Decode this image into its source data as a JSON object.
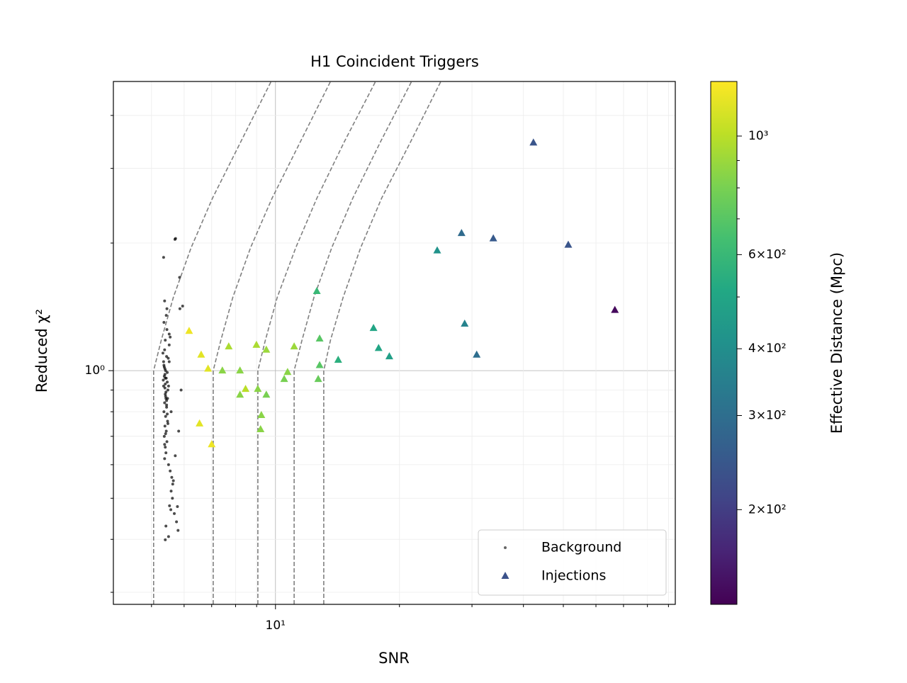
{
  "chart_data": {
    "type": "scatter",
    "title": "H1 Coincident Triggers",
    "xlabel": "SNR",
    "ylabel": "Reduced χ²",
    "xscale": "log",
    "yscale": "log",
    "xlim": [
      4.04,
      93.5
    ],
    "ylim": [
      0.281,
      4.81
    ],
    "xticks": [
      {
        "value": 10,
        "label": "10¹"
      }
    ],
    "yticks": [
      {
        "value": 1,
        "label": "10⁰"
      }
    ],
    "xminorticks": [
      5,
      6,
      7,
      8,
      9,
      20,
      30,
      40,
      50,
      60,
      70,
      80,
      90
    ],
    "yminorticks": [
      0.3,
      0.4,
      0.5,
      0.6,
      0.7,
      0.8,
      0.9,
      2,
      3,
      4
    ],
    "grid": true,
    "legend": "lower right",
    "series": [
      {
        "name": "Background",
        "color": "#000000",
        "marker": "dot",
        "x": [
          5.35,
          5.7,
          5.72,
          5.85,
          5.38,
          5.95,
          5.4,
          5.5,
          5.78,
          5.42,
          5.36,
          5.45,
          5.4,
          5.38,
          5.44,
          5.52,
          5.37,
          5.41,
          5.39,
          5.43,
          5.46,
          5.35,
          5.48,
          5.4,
          5.42,
          5.38,
          5.44,
          5.36,
          5.41,
          5.47,
          5.39,
          5.43,
          5.37,
          5.45,
          5.4,
          5.42,
          5.38,
          5.5,
          5.55,
          5.6,
          5.65,
          5.58,
          5.62,
          5.53,
          5.68,
          5.75,
          5.8,
          5.57,
          5.63,
          5.71,
          5.33,
          5.34,
          5.36,
          5.39,
          5.41,
          5.44,
          5.46,
          5.49,
          5.52,
          5.55,
          5.4,
          5.42,
          5.44,
          5.37,
          5.39,
          5.46,
          5.48,
          5.41,
          5.38,
          5.43,
          5.86,
          5.9,
          5.82,
          5.45,
          5.52,
          5.58,
          5.35,
          5.4,
          5.47,
          5.5
        ],
        "y": [
          1.85,
          2.04,
          2.05,
          1.66,
          1.46,
          1.42,
          0.399,
          0.406,
          0.478,
          0.43,
          1.3,
          1.25,
          1.18,
          1.12,
          1.08,
          1.05,
          1.02,
          1.0,
          0.98,
          0.96,
          0.94,
          0.92,
          0.9,
          0.88,
          0.86,
          0.84,
          0.82,
          0.8,
          0.78,
          0.76,
          0.74,
          0.72,
          0.7,
          0.68,
          0.66,
          0.64,
          0.62,
          0.6,
          0.58,
          0.56,
          0.55,
          0.52,
          0.5,
          0.48,
          0.46,
          0.44,
          0.42,
          0.47,
          0.54,
          0.63,
          1.1,
          0.95,
          1.03,
          0.91,
          0.87,
          0.83,
          0.99,
          1.07,
          1.15,
          1.2,
          0.93,
          0.89,
          0.85,
          0.97,
          1.01,
          0.79,
          0.75,
          0.71,
          0.67,
          1.35,
          1.4,
          0.9,
          0.72,
          1.4,
          1.22,
          0.8,
          1.05,
          0.96,
          0.86,
          0.92
        ]
      },
      {
        "name": "Injections",
        "color": "#3b528b",
        "marker": "triangle",
        "x": [
          6.17,
          6.6,
          6.86,
          6.54,
          7.0,
          7.43,
          7.7,
          8.2,
          8.2,
          8.46,
          8.99,
          9.06,
          9.5,
          9.24,
          9.2,
          9.5,
          11.1,
          10.7,
          10.5,
          12.6,
          12.8,
          12.8,
          12.7,
          14.2,
          17.3,
          17.8,
          18.9,
          24.7,
          28.3,
          28.8,
          30.8,
          33.8,
          42.3,
          51.4,
          66.7
        ],
        "y": [
          1.24,
          1.09,
          1.01,
          0.75,
          0.67,
          1.0,
          1.14,
          1.0,
          0.877,
          0.905,
          1.15,
          0.905,
          1.12,
          0.785,
          0.727,
          0.877,
          1.14,
          0.992,
          0.955,
          1.54,
          1.19,
          1.03,
          0.955,
          1.06,
          1.26,
          1.13,
          1.08,
          1.92,
          2.11,
          1.29,
          1.09,
          2.05,
          3.45,
          1.98,
          1.39
        ],
        "c": [
          1200,
          1150,
          1150,
          1150,
          1200,
          850,
          950,
          850,
          850,
          1000,
          950,
          850,
          900,
          850,
          850,
          800,
          900,
          850,
          800,
          600,
          700,
          700,
          750,
          550,
          500,
          500,
          470,
          420,
          290,
          360,
          300,
          250,
          240,
          240,
          140
        ]
      }
    ],
    "colorbar": {
      "label": "Effective Distance (Mpc)",
      "colormap": "viridis",
      "scale": "log",
      "lim": [
        133,
        1265
      ],
      "ticks": [
        {
          "value": 1000,
          "label": "10³"
        },
        {
          "value": 600,
          "label": "6×10²"
        },
        {
          "value": 400,
          "label": "4×10²"
        },
        {
          "value": 300,
          "label": "3×10²"
        },
        {
          "value": 200,
          "label": "2×10²"
        }
      ],
      "minorticks": [
        500,
        700,
        800,
        900
      ]
    },
    "line_color": "#808080",
    "lines": [
      {
        "x": [
          5.06,
          5.06,
          5.28,
          5.65,
          6.24,
          7.03,
          8.24,
          9.76
        ],
        "y": [
          0.281,
          1,
          1.18,
          1.49,
          1.95,
          2.55,
          3.47,
          4.81
        ]
      },
      {
        "x": [
          7.06,
          7.06,
          7.37,
          7.88,
          8.7,
          9.81,
          11.5,
          13.6
        ],
        "y": [
          0.281,
          1,
          1.18,
          1.49,
          1.95,
          2.55,
          3.47,
          4.81
        ]
      },
      {
        "x": [
          9.06,
          9.06,
          9.45,
          10.1,
          11.2,
          12.6,
          14.7,
          17.5
        ],
        "y": [
          0.281,
          1,
          1.18,
          1.49,
          1.95,
          2.55,
          3.47,
          4.81
        ]
      },
      {
        "x": [
          11.1,
          11.1,
          11.6,
          12.4,
          13.7,
          15.4,
          18.0,
          21.4
        ],
        "y": [
          0.281,
          1,
          1.18,
          1.49,
          1.95,
          2.55,
          3.47,
          4.81
        ]
      },
      {
        "x": [
          13.1,
          13.1,
          13.6,
          14.6,
          16.1,
          18.1,
          21.3,
          25.2
        ],
        "y": [
          0.281,
          1,
          1.18,
          1.49,
          1.95,
          2.55,
          3.47,
          4.81
        ]
      }
    ]
  }
}
